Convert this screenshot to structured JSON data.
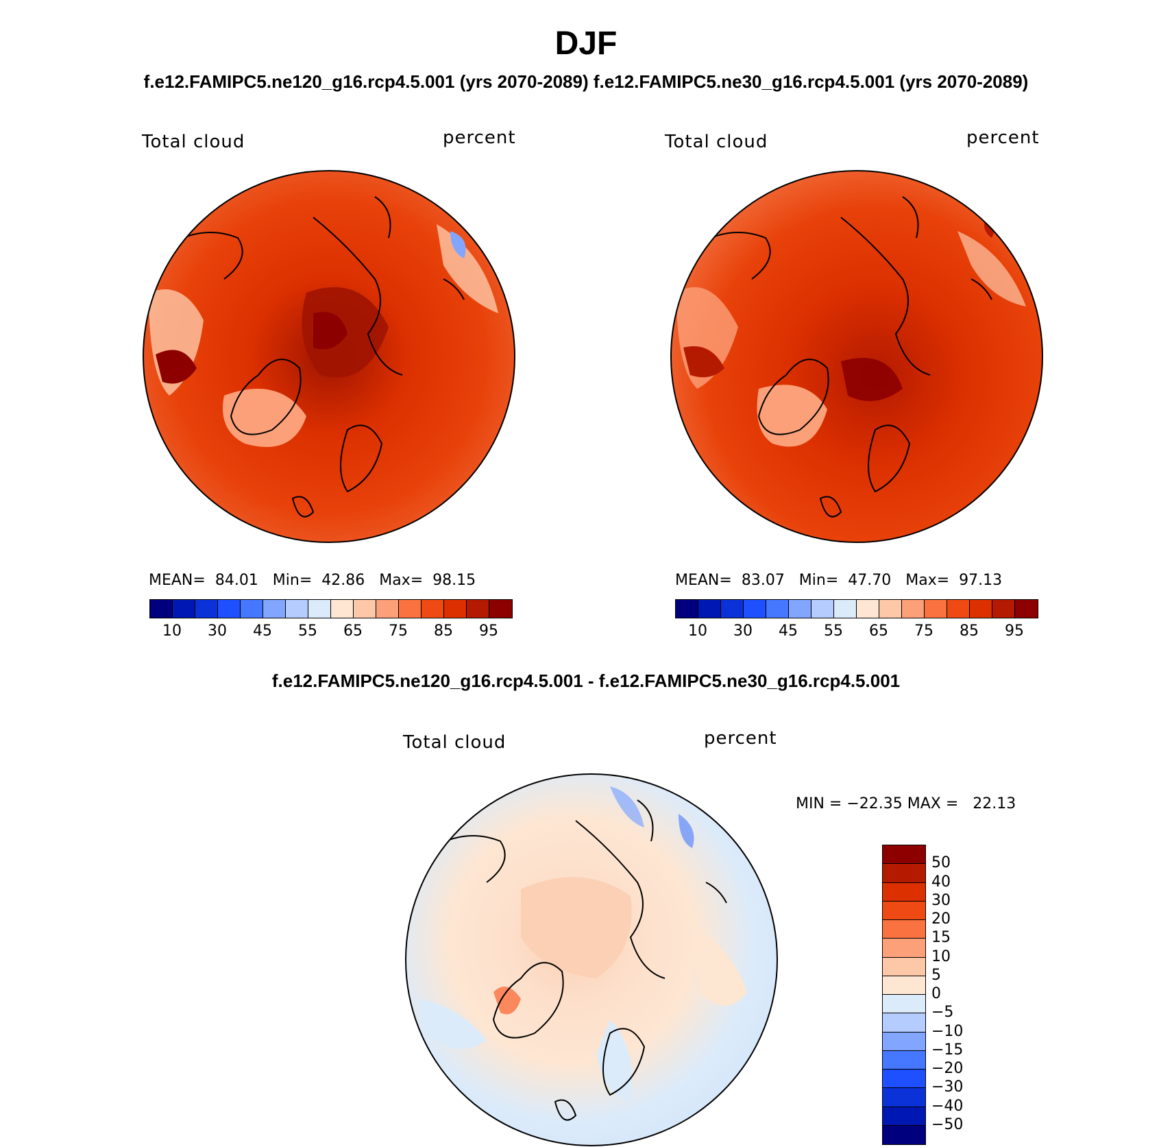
{
  "title": "DJF",
  "subtitle_top": "f.e12.FAMIPC5.ne120_g16.rcp4.5.001 (yrs 2070-2089)   f.e12.FAMIPC5.ne30_g16.rcp4.5.001 (yrs 2070-2089)",
  "subtitle_diff": "f.e12.FAMIPC5.ne120_g16.rcp4.5.001 - f.e12.FAMIPC5.ne30_g16.rcp4.5.001",
  "panels": [
    {
      "variable": "Total cloud",
      "units": "percent",
      "mean_label": "MEAN=",
      "mean": "84.01",
      "min_label": "Min=",
      "min": "42.86",
      "max_label": "Max=",
      "max": "98.15"
    },
    {
      "variable": "Total cloud",
      "units": "percent",
      "mean_label": "MEAN=",
      "mean": "83.07",
      "min_label": "Min=",
      "min": "47.70",
      "max_label": "Max=",
      "max": "97.13"
    }
  ],
  "diff_panel": {
    "variable": "Total cloud",
    "units": "percent",
    "minmax_text": "MIN = −22.35 MAX =   22.13"
  },
  "colorbar_abs": {
    "colors": [
      "#00007f",
      "#0018b3",
      "#0a32d8",
      "#1e50ff",
      "#4678ff",
      "#82a6ff",
      "#b4ccff",
      "#dcebfa",
      "#fde6d2",
      "#fdc8a8",
      "#fca079",
      "#fa7240",
      "#f04a14",
      "#dc3000",
      "#b41a00",
      "#8c0000"
    ],
    "tick_labels": [
      "10",
      "30",
      "45",
      "55",
      "65",
      "75",
      "85",
      "95"
    ]
  },
  "colorbar_diff": {
    "colors": [
      "#8c0000",
      "#b41a00",
      "#dc3000",
      "#f04a14",
      "#fa7240",
      "#fca079",
      "#fdc8a8",
      "#fde6d2",
      "#dcebfa",
      "#b4ccff",
      "#82a6ff",
      "#4678ff",
      "#1e50ff",
      "#0a32d8",
      "#0018b3",
      "#00007f"
    ],
    "tick_labels": [
      "50",
      "40",
      "30",
      "20",
      "15",
      "10",
      "5",
      "0",
      "−5",
      "−10",
      "−15",
      "−20",
      "−30",
      "−40",
      "−50"
    ]
  }
}
